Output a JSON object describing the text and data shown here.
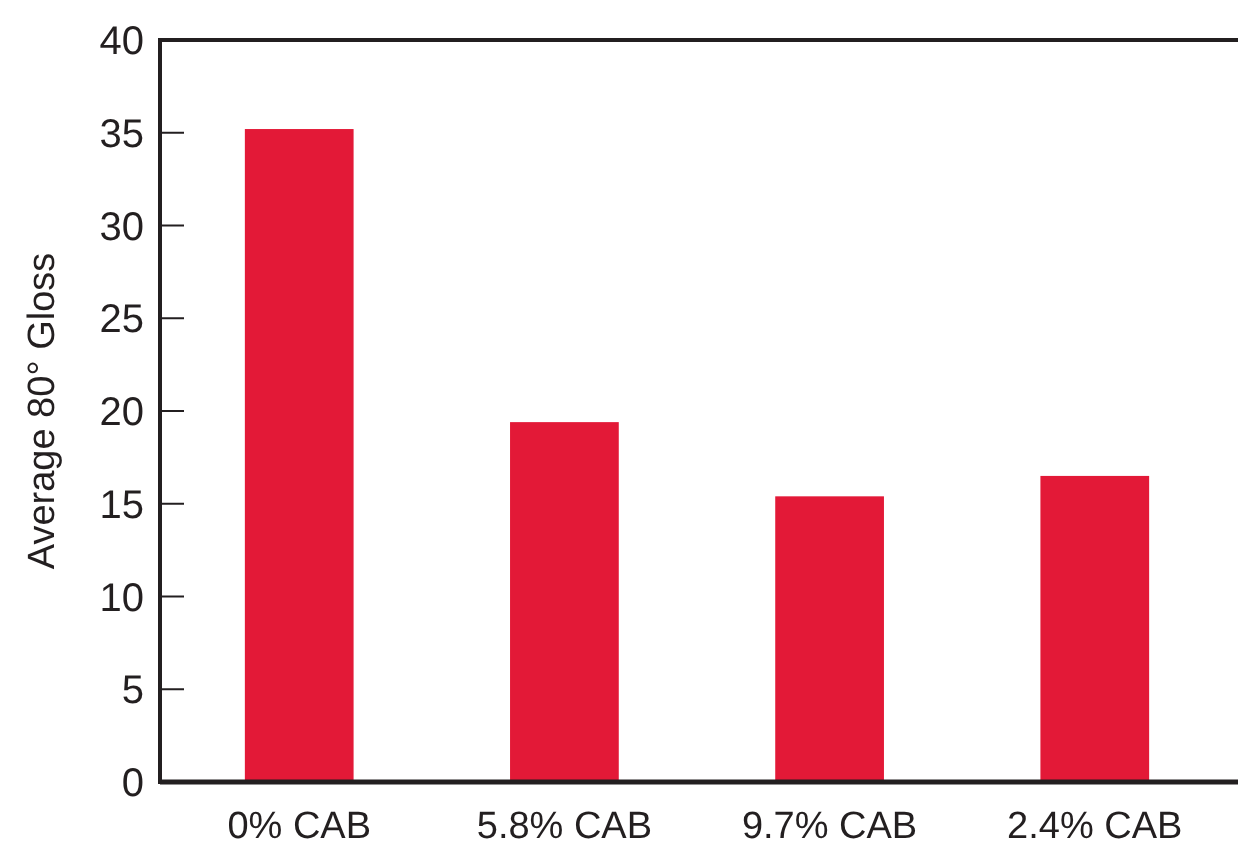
{
  "chart_data": {
    "type": "bar",
    "ylabel": "Average 80° Gloss",
    "categories": [
      "0% CAB",
      "5.8% CAB",
      "9.7% CAB",
      "2.4% CAB"
    ],
    "values": [
      35.2,
      19.4,
      15.4,
      16.5
    ],
    "color": "#e31937",
    "ylim": [
      0,
      40
    ],
    "yticks": [
      0,
      5,
      10,
      15,
      20,
      25,
      30,
      35,
      40
    ],
    "grid": false
  }
}
